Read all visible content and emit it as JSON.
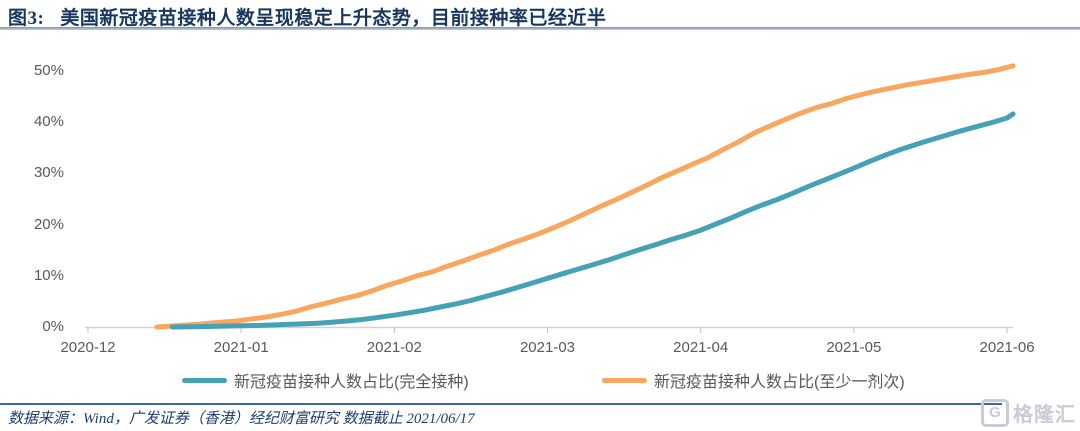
{
  "figure": {
    "number": "图3:",
    "title": "美国新冠疫苗接种人数呈现稳定上升态势，目前接种率已经近半",
    "source_note": "数据来源：Wind，广发证券（香港）经纪财富研究   数据截止 2021/06/17",
    "watermark_icon": "G",
    "watermark_text": "格隆汇"
  },
  "chart_data": {
    "type": "line",
    "title": "美国新冠疫苗接种人数呈现稳定上升态势，目前接种率已经近半",
    "grid": false,
    "legend_position": "bottom",
    "x_axis": {
      "tick_labels": [
        "2020-12",
        "2021-01",
        "2021-02",
        "2021-03",
        "2021-04",
        "2021-05",
        "2021-06"
      ],
      "unit": "months_from_2020-12_tick",
      "range_note": "data starts mid-Dec 2020 (t≈0.45) and ends 2021/06/17 (t≈6.04)"
    },
    "y_axis": {
      "tick_labels": [
        "0%",
        "10%",
        "20%",
        "30%",
        "40%",
        "50%"
      ],
      "min": 0,
      "max": 55,
      "unit": "percent of population"
    },
    "series": [
      {
        "name": "新冠疫苗接种人数占比(完全接种)",
        "color": "#45a1b6",
        "points": [
          [
            0.55,
            0
          ],
          [
            0.7,
            0.05
          ],
          [
            0.85,
            0.15
          ],
          [
            1,
            0.25
          ],
          [
            1.1,
            0.3
          ],
          [
            1.2,
            0.4
          ],
          [
            1.3,
            0.5
          ],
          [
            1.4,
            0.6
          ],
          [
            1.5,
            0.75
          ],
          [
            1.6,
            0.95
          ],
          [
            1.7,
            1.2
          ],
          [
            1.8,
            1.5
          ],
          [
            1.9,
            1.9
          ],
          [
            2,
            2.3
          ],
          [
            2.1,
            2.8
          ],
          [
            2.2,
            3.3
          ],
          [
            2.3,
            3.9
          ],
          [
            2.4,
            4.5
          ],
          [
            2.5,
            5.2
          ],
          [
            2.6,
            6
          ],
          [
            2.7,
            6.8
          ],
          [
            2.8,
            7.7
          ],
          [
            2.9,
            8.6
          ],
          [
            3,
            9.5
          ],
          [
            3.1,
            10.4
          ],
          [
            3.2,
            11.3
          ],
          [
            3.3,
            12.2
          ],
          [
            3.4,
            13.1
          ],
          [
            3.5,
            14.1
          ],
          [
            3.6,
            15.1
          ],
          [
            3.7,
            16
          ],
          [
            3.8,
            17
          ],
          [
            3.9,
            17.9
          ],
          [
            4,
            18.9
          ],
          [
            4.1,
            20.1
          ],
          [
            4.2,
            21.3
          ],
          [
            4.3,
            22.6
          ],
          [
            4.4,
            23.8
          ],
          [
            4.5,
            24.9
          ],
          [
            4.6,
            26.1
          ],
          [
            4.7,
            27.4
          ],
          [
            4.8,
            28.6
          ],
          [
            4.9,
            29.8
          ],
          [
            5,
            31
          ],
          [
            5.1,
            32.3
          ],
          [
            5.2,
            33.5
          ],
          [
            5.3,
            34.6
          ],
          [
            5.4,
            35.6
          ],
          [
            5.5,
            36.5
          ],
          [
            5.6,
            37.4
          ],
          [
            5.7,
            38.3
          ],
          [
            5.8,
            39.1
          ],
          [
            5.9,
            39.9
          ],
          [
            6,
            40.8
          ],
          [
            6.04,
            41.6
          ]
        ]
      },
      {
        "name": "新冠疫苗接种人数占比(至少一剂次)",
        "color": "#f9a65e",
        "points": [
          [
            0.45,
            0
          ],
          [
            0.55,
            0.2
          ],
          [
            0.65,
            0.4
          ],
          [
            0.75,
            0.6
          ],
          [
            0.85,
            0.9
          ],
          [
            0.95,
            1.1
          ],
          [
            1.05,
            1.5
          ],
          [
            1.15,
            1.9
          ],
          [
            1.25,
            2.4
          ],
          [
            1.35,
            3
          ],
          [
            1.45,
            3.9
          ],
          [
            1.55,
            4.6
          ],
          [
            1.65,
            5.4
          ],
          [
            1.75,
            6.1
          ],
          [
            1.85,
            7
          ],
          [
            1.95,
            8.1
          ],
          [
            2.05,
            9
          ],
          [
            2.15,
            10
          ],
          [
            2.25,
            10.8
          ],
          [
            2.35,
            11.9
          ],
          [
            2.45,
            12.9
          ],
          [
            2.55,
            14
          ],
          [
            2.65,
            15
          ],
          [
            2.75,
            16.2
          ],
          [
            2.85,
            17.2
          ],
          [
            2.95,
            18.3
          ],
          [
            3.05,
            19.5
          ],
          [
            3.15,
            20.8
          ],
          [
            3.25,
            22.2
          ],
          [
            3.35,
            23.6
          ],
          [
            3.45,
            24.9
          ],
          [
            3.55,
            26.3
          ],
          [
            3.65,
            27.7
          ],
          [
            3.75,
            29.2
          ],
          [
            3.85,
            30.5
          ],
          [
            3.95,
            31.8
          ],
          [
            4.05,
            33.1
          ],
          [
            4.15,
            34.7
          ],
          [
            4.25,
            36.2
          ],
          [
            4.35,
            37.9
          ],
          [
            4.45,
            39.2
          ],
          [
            4.55,
            40.5
          ],
          [
            4.65,
            41.7
          ],
          [
            4.75,
            42.8
          ],
          [
            4.85,
            43.6
          ],
          [
            4.95,
            44.6
          ],
          [
            5.05,
            45.4
          ],
          [
            5.15,
            46.1
          ],
          [
            5.25,
            46.7
          ],
          [
            5.35,
            47.3
          ],
          [
            5.45,
            47.8
          ],
          [
            5.55,
            48.3
          ],
          [
            5.65,
            48.8
          ],
          [
            5.75,
            49.3
          ],
          [
            5.85,
            49.7
          ],
          [
            5.95,
            50.3
          ],
          [
            6.04,
            51
          ]
        ]
      }
    ],
    "readings_at_month_ticks": {
      "2021-01": {
        "full_vaccination_pct": 0.3,
        "at_least_one_dose_pct": 1.3
      },
      "2021-02": {
        "full_vaccination_pct": 2.3,
        "at_least_one_dose_pct": 8.6
      },
      "2021-03": {
        "full_vaccination_pct": 9.5,
        "at_least_one_dose_pct": 18.8
      },
      "2021-04": {
        "full_vaccination_pct": 18.9,
        "at_least_one_dose_pct": 32.3
      },
      "2021-05": {
        "full_vaccination_pct": 31.0,
        "at_least_one_dose_pct": 45.0
      },
      "2021-06": {
        "full_vaccination_pct": 40.8,
        "at_least_one_dose_pct": 50.7
      },
      "2021-06-17_end": {
        "full_vaccination_pct": 41.6,
        "at_least_one_dose_pct": 51.0
      }
    }
  }
}
